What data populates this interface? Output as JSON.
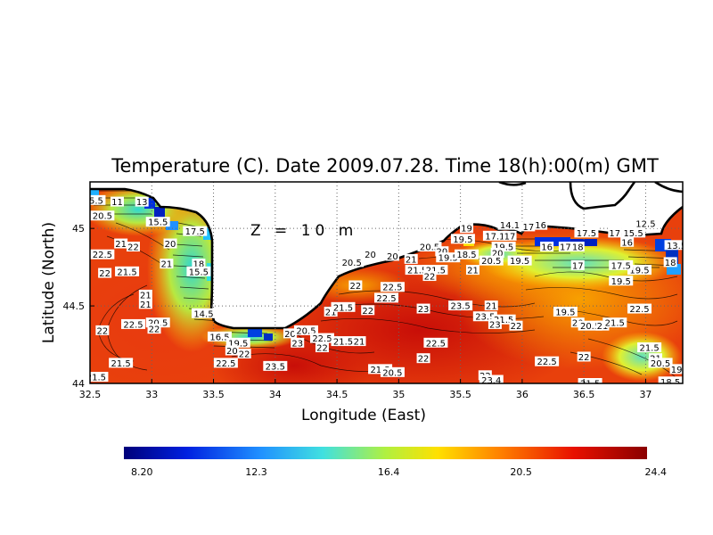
{
  "chart_data": {
    "type": "heatmap",
    "title": "Temperature (C). Date 2009.07.28. Time 18(h):00(m) GMT",
    "annotation": "Z = 10 m",
    "xlabel": "Longitude (East)",
    "ylabel": "Latitude (North)",
    "xlim": [
      32.5,
      37.3
    ],
    "ylim": [
      44.0,
      45.3
    ],
    "x_ticks": [
      "32.5",
      "33",
      "33.5",
      "34",
      "34.5",
      "35",
      "35.5",
      "36",
      "36.5",
      "37"
    ],
    "x_tick_values": [
      32.5,
      33,
      33.5,
      34,
      34.5,
      35,
      35.5,
      36,
      36.5,
      37
    ],
    "y_ticks": [
      "44",
      "44.5",
      "45"
    ],
    "y_tick_values": [
      44,
      44.5,
      45
    ],
    "grid": true,
    "colorbar": {
      "min": 8.2,
      "max": 24.4,
      "tick_labels": [
        "8.20",
        "12.3",
        "16.4",
        "20.5",
        "24.4"
      ],
      "tick_values": [
        8.2,
        12.3,
        16.4,
        20.5,
        24.4
      ],
      "colors": [
        "#00007a",
        "#0020e0",
        "#2090ff",
        "#40e0e0",
        "#b0f040",
        "#ffe000",
        "#ff8000",
        "#e81000",
        "#8a0000"
      ]
    },
    "contour_labels": [
      {
        "lon": 32.55,
        "lat": 45.18,
        "value": "5.5"
      },
      {
        "lon": 32.72,
        "lat": 45.17,
        "value": "11"
      },
      {
        "lon": 32.92,
        "lat": 45.17,
        "value": "13"
      },
      {
        "lon": 32.6,
        "lat": 45.08,
        "value": "20.5"
      },
      {
        "lon": 33.05,
        "lat": 45.04,
        "value": "15.5"
      },
      {
        "lon": 33.35,
        "lat": 44.98,
        "value": "17.5"
      },
      {
        "lon": 33.15,
        "lat": 44.9,
        "value": "20"
      },
      {
        "lon": 32.6,
        "lat": 44.83,
        "value": "22.5"
      },
      {
        "lon": 32.75,
        "lat": 44.9,
        "value": "21"
      },
      {
        "lon": 32.85,
        "lat": 44.88,
        "value": "22"
      },
      {
        "lon": 32.62,
        "lat": 44.71,
        "value": "22"
      },
      {
        "lon": 32.8,
        "lat": 44.72,
        "value": "21.5"
      },
      {
        "lon": 33.12,
        "lat": 44.77,
        "value": "21"
      },
      {
        "lon": 33.38,
        "lat": 44.77,
        "value": "18"
      },
      {
        "lon": 33.38,
        "lat": 44.72,
        "value": "15.5"
      },
      {
        "lon": 32.95,
        "lat": 44.57,
        "value": "21"
      },
      {
        "lon": 32.95,
        "lat": 44.51,
        "value": "21"
      },
      {
        "lon": 33.42,
        "lat": 44.45,
        "value": "14.5"
      },
      {
        "lon": 33.05,
        "lat": 44.39,
        "value": "20.5"
      },
      {
        "lon": 32.85,
        "lat": 44.38,
        "value": "22.5"
      },
      {
        "lon": 33.02,
        "lat": 44.35,
        "value": "22"
      },
      {
        "lon": 32.6,
        "lat": 44.34,
        "value": "22"
      },
      {
        "lon": 33.55,
        "lat": 44.3,
        "value": "16.5"
      },
      {
        "lon": 33.7,
        "lat": 44.26,
        "value": "19.5"
      },
      {
        "lon": 33.65,
        "lat": 44.21,
        "value": "20"
      },
      {
        "lon": 33.75,
        "lat": 44.19,
        "value": "22"
      },
      {
        "lon": 33.6,
        "lat": 44.13,
        "value": "22.5"
      },
      {
        "lon": 32.75,
        "lat": 44.13,
        "value": "21.5"
      },
      {
        "lon": 32.55,
        "lat": 44.04,
        "value": "21.5"
      },
      {
        "lon": 34.0,
        "lat": 44.11,
        "value": "23.5"
      },
      {
        "lon": 34.12,
        "lat": 44.32,
        "value": "20"
      },
      {
        "lon": 34.25,
        "lat": 44.34,
        "value": "20.5"
      },
      {
        "lon": 34.18,
        "lat": 44.26,
        "value": "23"
      },
      {
        "lon": 34.38,
        "lat": 44.29,
        "value": "22.5"
      },
      {
        "lon": 34.38,
        "lat": 44.23,
        "value": "22"
      },
      {
        "lon": 34.55,
        "lat": 44.27,
        "value": "21.5"
      },
      {
        "lon": 34.68,
        "lat": 44.27,
        "value": "21"
      },
      {
        "lon": 34.45,
        "lat": 44.46,
        "value": "21"
      },
      {
        "lon": 34.55,
        "lat": 44.49,
        "value": "21.5"
      },
      {
        "lon": 34.62,
        "lat": 44.78,
        "value": "20.5"
      },
      {
        "lon": 34.77,
        "lat": 44.83,
        "value": "20"
      },
      {
        "lon": 34.65,
        "lat": 44.63,
        "value": "22"
      },
      {
        "lon": 34.95,
        "lat": 44.62,
        "value": "22.5"
      },
      {
        "lon": 34.9,
        "lat": 44.55,
        "value": "22.5"
      },
      {
        "lon": 34.75,
        "lat": 44.47,
        "value": "22"
      },
      {
        "lon": 34.95,
        "lat": 44.82,
        "value": "20"
      },
      {
        "lon": 35.1,
        "lat": 44.8,
        "value": "21"
      },
      {
        "lon": 35.15,
        "lat": 44.73,
        "value": "21.5"
      },
      {
        "lon": 35.3,
        "lat": 44.73,
        "value": "21.5"
      },
      {
        "lon": 35.25,
        "lat": 44.69,
        "value": "22"
      },
      {
        "lon": 35.25,
        "lat": 44.88,
        "value": "20.5"
      },
      {
        "lon": 35.35,
        "lat": 44.85,
        "value": "20"
      },
      {
        "lon": 35.4,
        "lat": 44.81,
        "value": "19.5"
      },
      {
        "lon": 35.55,
        "lat": 44.83,
        "value": "18.5"
      },
      {
        "lon": 35.52,
        "lat": 44.93,
        "value": "19.5"
      },
      {
        "lon": 35.55,
        "lat": 45.0,
        "value": "19"
      },
      {
        "lon": 35.6,
        "lat": 44.73,
        "value": "21"
      },
      {
        "lon": 35.2,
        "lat": 44.48,
        "value": "23"
      },
      {
        "lon": 35.5,
        "lat": 44.5,
        "value": "23.5"
      },
      {
        "lon": 35.75,
        "lat": 44.5,
        "value": "21"
      },
      {
        "lon": 35.7,
        "lat": 44.43,
        "value": "23.5"
      },
      {
        "lon": 35.85,
        "lat": 44.41,
        "value": "21.5"
      },
      {
        "lon": 35.78,
        "lat": 44.38,
        "value": "23"
      },
      {
        "lon": 35.95,
        "lat": 44.37,
        "value": "22"
      },
      {
        "lon": 35.3,
        "lat": 44.26,
        "value": "22.5"
      },
      {
        "lon": 35.2,
        "lat": 44.16,
        "value": "22"
      },
      {
        "lon": 34.85,
        "lat": 44.09,
        "value": "21.5"
      },
      {
        "lon": 34.95,
        "lat": 44.07,
        "value": "20.5"
      },
      {
        "lon": 35.7,
        "lat": 44.05,
        "value": "22"
      },
      {
        "lon": 35.75,
        "lat": 44.02,
        "value": "23.4"
      },
      {
        "lon": 35.78,
        "lat": 44.95,
        "value": "17.1"
      },
      {
        "lon": 35.85,
        "lat": 44.88,
        "value": "19.5"
      },
      {
        "lon": 35.8,
        "lat": 44.84,
        "value": "20"
      },
      {
        "lon": 35.75,
        "lat": 44.79,
        "value": "20.5"
      },
      {
        "lon": 35.98,
        "lat": 44.79,
        "value": "19.5"
      },
      {
        "lon": 35.9,
        "lat": 45.02,
        "value": "14.1"
      },
      {
        "lon": 36.05,
        "lat": 45.01,
        "value": "17"
      },
      {
        "lon": 36.15,
        "lat": 45.02,
        "value": "16"
      },
      {
        "lon": 35.9,
        "lat": 44.95,
        "value": "17"
      },
      {
        "lon": 36.2,
        "lat": 44.88,
        "value": "16"
      },
      {
        "lon": 36.35,
        "lat": 44.88,
        "value": "17"
      },
      {
        "lon": 36.45,
        "lat": 44.88,
        "value": "18"
      },
      {
        "lon": 36.52,
        "lat": 44.97,
        "value": "17.5"
      },
      {
        "lon": 36.45,
        "lat": 44.76,
        "value": "17"
      },
      {
        "lon": 36.75,
        "lat": 44.97,
        "value": "17"
      },
      {
        "lon": 36.9,
        "lat": 44.97,
        "value": "15.5"
      },
      {
        "lon": 37.0,
        "lat": 45.03,
        "value": "12.5"
      },
      {
        "lon": 36.85,
        "lat": 44.91,
        "value": "16"
      },
      {
        "lon": 36.95,
        "lat": 44.73,
        "value": "19.5"
      },
      {
        "lon": 36.8,
        "lat": 44.76,
        "value": "17.5"
      },
      {
        "lon": 36.8,
        "lat": 44.66,
        "value": "19.5"
      },
      {
        "lon": 37.2,
        "lat": 44.78,
        "value": "18"
      },
      {
        "lon": 37.25,
        "lat": 44.89,
        "value": "13.5"
      },
      {
        "lon": 36.95,
        "lat": 44.48,
        "value": "22.5"
      },
      {
        "lon": 36.35,
        "lat": 44.46,
        "value": "19.5"
      },
      {
        "lon": 36.45,
        "lat": 44.39,
        "value": "20"
      },
      {
        "lon": 36.55,
        "lat": 44.37,
        "value": "20.5"
      },
      {
        "lon": 36.65,
        "lat": 44.37,
        "value": "21"
      },
      {
        "lon": 36.75,
        "lat": 44.39,
        "value": "21.5"
      },
      {
        "lon": 37.03,
        "lat": 44.23,
        "value": "21.5"
      },
      {
        "lon": 37.08,
        "lat": 44.16,
        "value": "21"
      },
      {
        "lon": 37.12,
        "lat": 44.13,
        "value": "20.5"
      },
      {
        "lon": 37.25,
        "lat": 44.09,
        "value": "19"
      },
      {
        "lon": 37.2,
        "lat": 44.01,
        "value": "18.5"
      },
      {
        "lon": 36.2,
        "lat": 44.14,
        "value": "22.5"
      },
      {
        "lon": 36.5,
        "lat": 44.17,
        "value": "22"
      },
      {
        "lon": 36.55,
        "lat": 44.0,
        "value": "21.5"
      }
    ]
  }
}
